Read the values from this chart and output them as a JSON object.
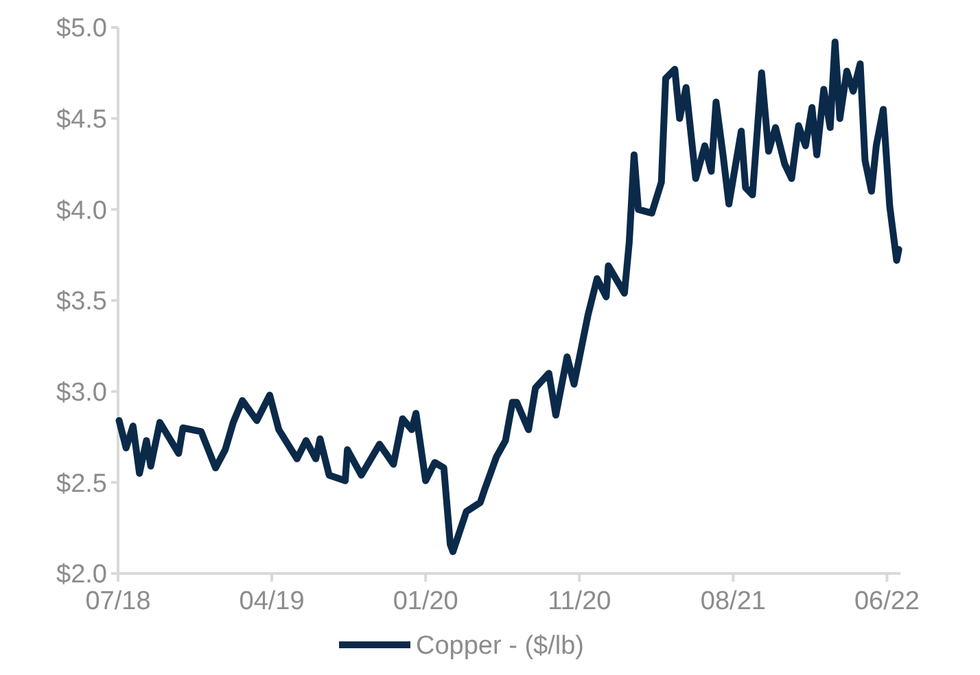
{
  "chart_data": {
    "type": "line",
    "legend": "bottom",
    "marker": "none",
    "line_style": "solid",
    "grid": false,
    "xlim": [
      "2018-07-02",
      "2022-07-01"
    ],
    "xticks": [
      {
        "value": "2018-07-02",
        "label": "07/18"
      },
      {
        "value": "2019-04-15",
        "label": "04/19"
      },
      {
        "value": "2020-01-27",
        "label": "01/20"
      },
      {
        "value": "2020-11-09",
        "label": "11/20"
      },
      {
        "value": "2021-08-23",
        "label": "08/21"
      },
      {
        "value": "2022-06-06",
        "label": "06/22"
      }
    ],
    "ylim": [
      2,
      5
    ],
    "yticks": [
      {
        "value": 2,
        "label": "$2.0"
      },
      {
        "value": 2.5,
        "label": "$2.5"
      },
      {
        "value": 3,
        "label": "$3.0"
      },
      {
        "value": 3.5,
        "label": "$3.5"
      },
      {
        "value": 4,
        "label": "$4.0"
      },
      {
        "value": 4.5,
        "label": "$4.5"
      },
      {
        "value": 5,
        "label": "$5.0"
      }
    ],
    "x": [
      "2018-07-04",
      "2018-07-17",
      "2018-07-30",
      "2018-08-11",
      "2018-08-24",
      "2018-09-01",
      "2018-09-18",
      "2018-10-23",
      "2018-10-31",
      "2018-12-04",
      "2018-12-31",
      "2019-01-18",
      "2019-02-02",
      "2019-02-19",
      "2019-03-18",
      "2019-04-11",
      "2019-04-28",
      "2019-06-01",
      "2019-06-18",
      "2019-07-06",
      "2019-07-14",
      "2019-07-31",
      "2019-08-30",
      "2019-09-03",
      "2019-09-29",
      "2019-11-02",
      "2019-11-28",
      "2019-12-15",
      "2020-01-01",
      "2020-01-09",
      "2020-01-27",
      "2020-02-13",
      "2020-03-01",
      "2020-03-13",
      "2020-03-18",
      "2020-04-12",
      "2020-05-08",
      "2020-05-16",
      "2020-06-07",
      "2020-06-24",
      "2020-07-07",
      "2020-07-15",
      "2020-08-06",
      "2020-08-19",
      "2020-09-13",
      "2020-09-26",
      "2020-10-17",
      "2020-10-30",
      "2020-11-25",
      "2020-12-12",
      "2020-12-29",
      "2021-01-02",
      "2021-02-01",
      "2021-02-10",
      "2021-02-19",
      "2021-02-27",
      "2021-03-24",
      "2021-04-11",
      "2021-04-19",
      "2021-05-06",
      "2021-05-15",
      "2021-05-27",
      "2021-06-14",
      "2021-07-01",
      "2021-07-13",
      "2021-07-22",
      "2021-08-04",
      "2021-08-15",
      "2021-09-07",
      "2021-09-15",
      "2021-09-28",
      "2021-10-15",
      "2021-10-28",
      "2021-11-10",
      "2021-11-27",
      "2021-12-10",
      "2021-12-23",
      "2022-01-05",
      "2022-01-17",
      "2022-01-26",
      "2022-02-08",
      "2022-02-20",
      "2022-03-01",
      "2022-03-10",
      "2022-03-23",
      "2022-04-04",
      "2022-04-17",
      "2022-04-26",
      "2022-05-08",
      "2022-05-17",
      "2022-05-30",
      "2022-06-11",
      "2022-06-24",
      "2022-06-28"
    ],
    "series": [
      {
        "name": "Copper - ($/lb)",
        "color": "#0b2a4a",
        "values": [
          2.84,
          2.69,
          2.81,
          2.55,
          2.73,
          2.59,
          2.83,
          2.66,
          2.8,
          2.78,
          2.58,
          2.68,
          2.83,
          2.95,
          2.84,
          2.98,
          2.79,
          2.63,
          2.73,
          2.63,
          2.74,
          2.54,
          2.51,
          2.68,
          2.54,
          2.71,
          2.6,
          2.85,
          2.79,
          2.88,
          2.51,
          2.61,
          2.58,
          2.16,
          2.12,
          2.34,
          2.39,
          2.46,
          2.64,
          2.73,
          2.94,
          2.94,
          2.79,
          3.02,
          3.1,
          2.87,
          3.19,
          3.04,
          3.42,
          3.62,
          3.52,
          3.69,
          3.54,
          3.82,
          4.3,
          4.0,
          3.98,
          4.15,
          4.72,
          4.77,
          4.5,
          4.67,
          4.17,
          4.35,
          4.21,
          4.59,
          4.3,
          4.03,
          4.43,
          4.12,
          4.08,
          4.75,
          4.32,
          4.45,
          4.25,
          4.17,
          4.46,
          4.35,
          4.56,
          4.3,
          4.66,
          4.45,
          4.92,
          4.5,
          4.76,
          4.65,
          4.8,
          4.27,
          4.1,
          4.35,
          4.55,
          4.02,
          3.72,
          3.78
        ]
      }
    ]
  }
}
